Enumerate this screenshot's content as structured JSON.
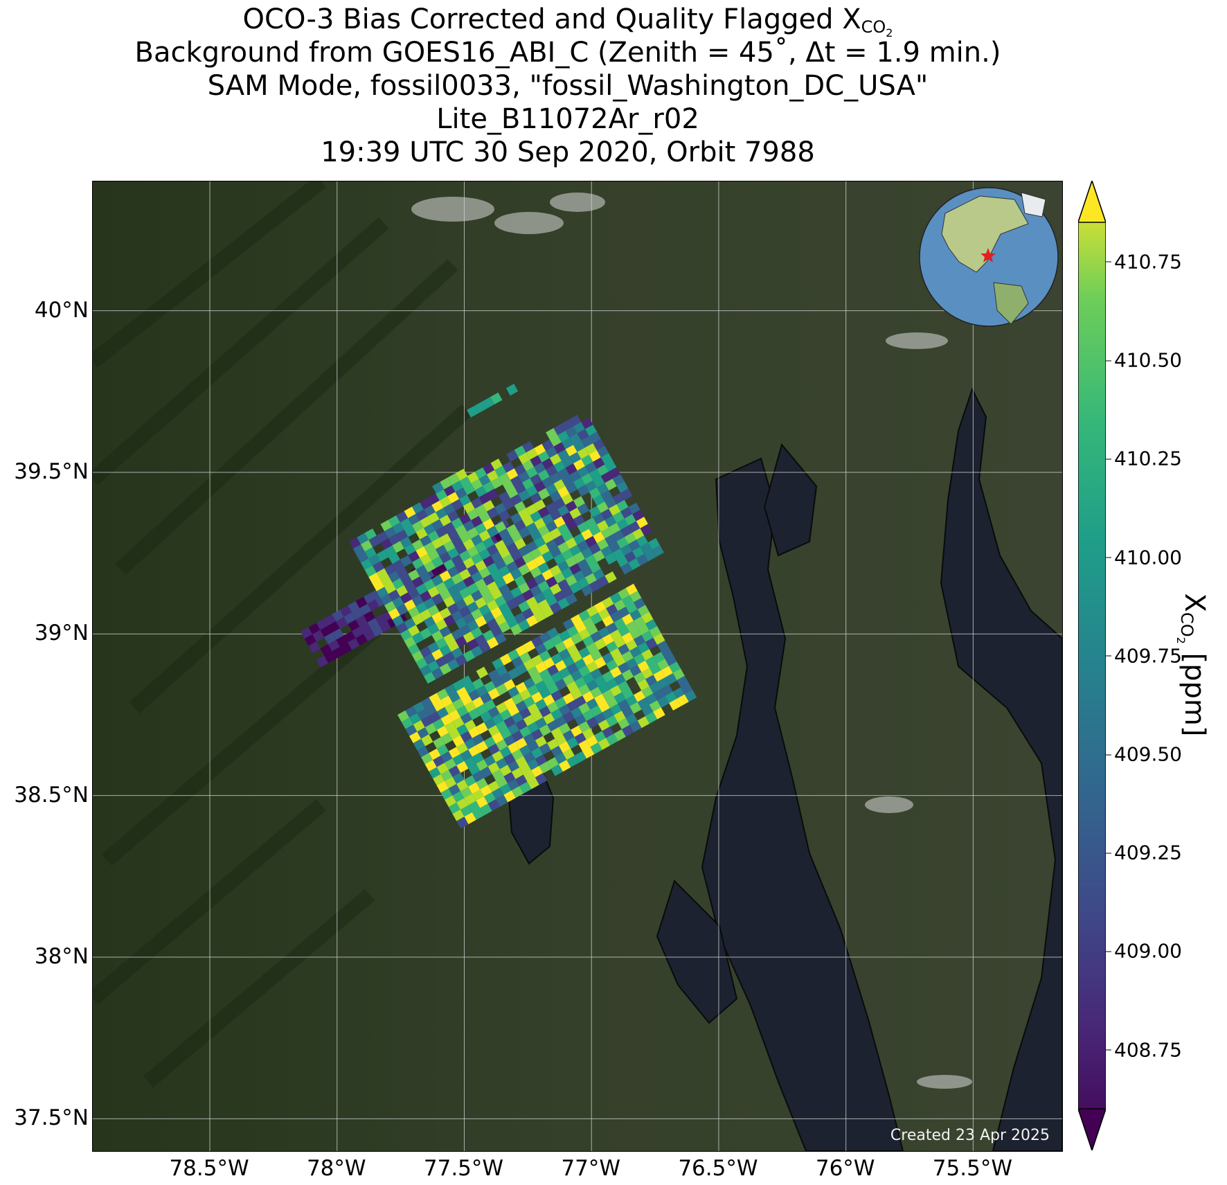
{
  "title": {
    "line1_main": "OCO-3 Bias Corrected and Quality Flagged X",
    "line1_sub": "CO",
    "line1_subsub": "2",
    "line2": "Background from GOES16_ABI_C (Zenith = 45˚, Δt =  1.9 min.)",
    "line3": "SAM Mode, fossil0033, \"fossil_Washington_DC_USA\"",
    "line4": "Lite_B11072Ar_r02",
    "line5": "19:39 UTC 30 Sep 2020, Orbit 7988"
  },
  "map": {
    "lat_ticks": [
      "40°N",
      "39.5°N",
      "39°N",
      "38.5°N",
      "38°N",
      "37.5°N"
    ],
    "lon_ticks": [
      "78.5°W",
      "78°W",
      "77.5°W",
      "77°W",
      "76.5°W",
      "76°W",
      "75.5°W"
    ],
    "lat_values": [
      40.0,
      39.5,
      39.0,
      38.5,
      38.0,
      37.5
    ],
    "lon_values": [
      -78.5,
      -78.0,
      -77.5,
      -77.0,
      -76.5,
      -76.0,
      -75.5
    ],
    "extent": {
      "lon_min": -78.96,
      "lon_max": -75.15,
      "lat_min": 37.4,
      "lat_max": 40.4
    },
    "credit": "Created 23 Apr 2025",
    "target_marker": "red-star",
    "colors": {
      "land": "#2f3c22",
      "water": "#1c2230",
      "grid": "#cfcfcf"
    }
  },
  "colorbar": {
    "ticks": [
      "410.75",
      "410.50",
      "410.25",
      "410.00",
      "409.75",
      "409.50",
      "409.25",
      "409.00",
      "408.75"
    ],
    "tick_values": [
      410.75,
      410.5,
      410.25,
      410.0,
      409.75,
      409.5,
      409.25,
      409.0,
      408.75
    ],
    "vmin": 408.6,
    "vmax": 410.85,
    "label_main": "X",
    "label_sub": "CO",
    "label_subsub": "2",
    "label_unit": " [ppm]",
    "colormap": "viridis",
    "extend": "both"
  }
}
